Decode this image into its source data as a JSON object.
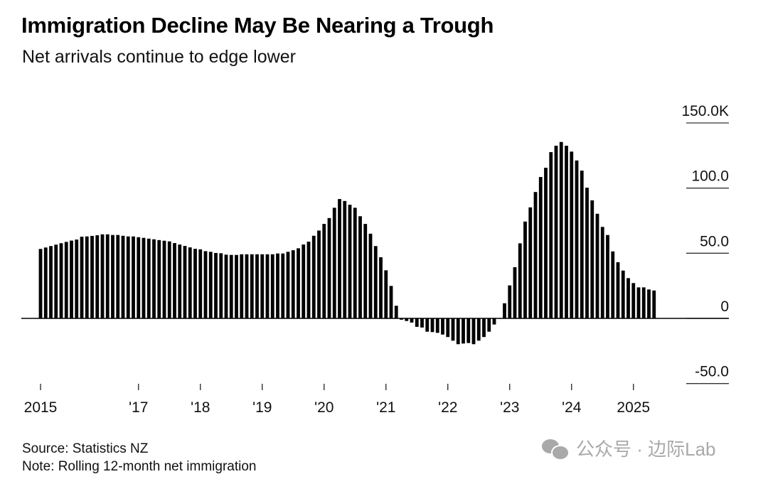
{
  "header": {
    "title": "Immigration Decline May Be Nearing a Trough",
    "subtitle": "Net arrivals continue to edge lower"
  },
  "footer": {
    "source": "Source: Statistics NZ",
    "note": "Note: Rolling 12-month net immigration"
  },
  "watermark": {
    "icon": "wechat-icon",
    "text": "公众号 · 边际Lab"
  },
  "chart_data": {
    "type": "bar",
    "title": "Immigration Decline May Be Nearing a Trough",
    "subtitle": "Net arrivals continue to edge lower",
    "xlabel": "",
    "ylabel": "Rolling 12-month net immigration (thousands)",
    "units": "K",
    "frequency": "monthly",
    "start": "2015-06",
    "end": "2025-05",
    "ylim": [
      -50,
      150
    ],
    "grid": true,
    "yaxis_position": "right",
    "bar_color": "#000000",
    "yticks": [
      {
        "value": 150,
        "label": "150.0K"
      },
      {
        "value": 100,
        "label": "100.0"
      },
      {
        "value": 50,
        "label": "50.0"
      },
      {
        "value": 0,
        "label": "0"
      },
      {
        "value": -50,
        "label": "-50.0"
      }
    ],
    "xticks": [
      {
        "index": 0,
        "label": "2015"
      },
      {
        "index": 19,
        "label": "'17"
      },
      {
        "index": 31,
        "label": "'18"
      },
      {
        "index": 43,
        "label": "'19"
      },
      {
        "index": 55,
        "label": "'20"
      },
      {
        "index": 67,
        "label": "'21"
      },
      {
        "index": 79,
        "label": "'22"
      },
      {
        "index": 91,
        "label": "'23"
      },
      {
        "index": 103,
        "label": "'24"
      },
      {
        "index": 115,
        "label": "2025"
      }
    ],
    "values": [
      53.3,
      54.4,
      55.5,
      56.6,
      57.7,
      58.7,
      59.7,
      60.5,
      62.7,
      62.9,
      63.3,
      63.8,
      64.5,
      64.5,
      64.0,
      64.0,
      63.4,
      62.9,
      62.9,
      62.3,
      61.8,
      61.2,
      60.7,
      60.1,
      59.6,
      59.1,
      57.8,
      56.7,
      55.6,
      54.5,
      53.4,
      53.0,
      51.6,
      51.1,
      50.2,
      50.0,
      48.9,
      48.7,
      48.7,
      49.2,
      49.2,
      49.2,
      49.2,
      49.2,
      49.2,
      49.2,
      49.8,
      49.8,
      51.1,
      52.3,
      53.8,
      56.7,
      58.9,
      63.4,
      67.4,
      72.5,
      77.0,
      84.9,
      91.6,
      90.1,
      87.2,
      84.9,
      78.4,
      72.5,
      65.0,
      55.5,
      46.9,
      36.9,
      24.9,
      9.7,
      -1.0,
      -2.0,
      -3.2,
      -6.5,
      -7.0,
      -10.2,
      -10.5,
      -11.1,
      -12.4,
      -14.3,
      -17.1,
      -19.8,
      -19.3,
      -18.9,
      -19.8,
      -17.1,
      -14.3,
      -10.2,
      -4.7,
      -0.3,
      11.6,
      25.3,
      39.3,
      57.6,
      74.3,
      85.2,
      97.0,
      108.5,
      115.6,
      127.6,
      132.5,
      135.4,
      132.5,
      128.0,
      121.2,
      113.4,
      100.3,
      90.6,
      80.3,
      70.2,
      64.0,
      51.4,
      43.1,
      36.7,
      30.9,
      27.1,
      23.8,
      23.8,
      22.2,
      21.4
    ]
  }
}
